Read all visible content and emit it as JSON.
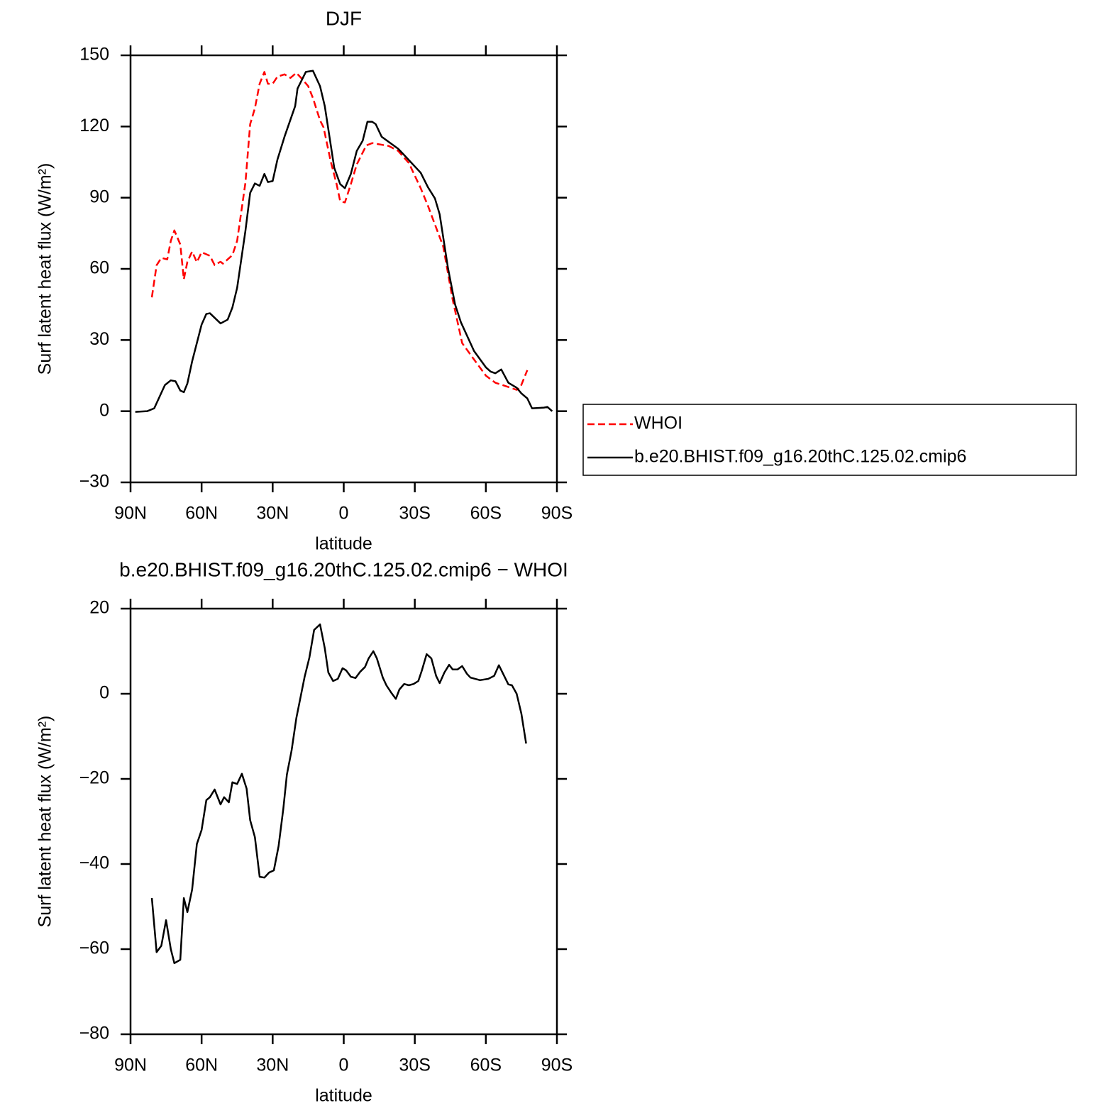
{
  "chart_data": [
    {
      "type": "line",
      "title": "DJF",
      "x_label": "latitude",
      "y_label": "Surf latent heat flux (W/m²)",
      "xlim": [
        90,
        -90
      ],
      "xticks": [
        {
          "value": 90,
          "label": "90N"
        },
        {
          "value": 60,
          "label": "60N"
        },
        {
          "value": 30,
          "label": "30N"
        },
        0,
        {
          "value": -30,
          "label": "30S"
        },
        {
          "value": -60,
          "label": "60S"
        },
        {
          "value": -90,
          "label": "90S"
        }
      ],
      "ylim": [
        -30,
        150
      ],
      "yticks": [
        {
          "value": -30,
          "label": "−30"
        },
        0,
        30,
        60,
        90,
        120,
        150
      ],
      "legend": "right",
      "series": [
        {
          "name": "WHOI",
          "color": "#ff0000",
          "dash": true,
          "x": [
            81,
            79,
            77,
            74.5,
            73,
            71.5,
            69,
            67.5,
            66,
            64,
            62,
            60,
            56.5,
            54.5,
            52,
            51,
            47,
            45,
            41.5,
            39.5,
            37.5,
            35.5,
            33.5,
            32,
            30,
            28,
            25,
            22.5,
            20,
            18,
            15,
            13,
            10,
            8.5,
            5.5,
            3,
            1.5,
            -0.5,
            -3,
            -5.5,
            -9.5,
            -12,
            -19,
            -23,
            -27.5,
            -32.5,
            -35.5,
            -42,
            -46,
            -50,
            -55,
            -60,
            -64,
            -69.5,
            -73,
            -74.5,
            -77.5
          ],
          "values": [
            48,
            61.5,
            64.6,
            64,
            71.8,
            76.2,
            70.3,
            55.6,
            63,
            67.3,
            62.8,
            67,
            65.5,
            61.6,
            63,
            62.2,
            65.8,
            71.8,
            96.3,
            121,
            127.7,
            138,
            143,
            138,
            138,
            141,
            142,
            140.5,
            142.6,
            140.5,
            137,
            132,
            122.6,
            119.6,
            105.3,
            95.7,
            88.5,
            88,
            95.7,
            104,
            112,
            113,
            111.8,
            109.7,
            104.6,
            94,
            86.7,
            69.4,
            47,
            28.7,
            21.8,
            15,
            12,
            10.2,
            9,
            9.9,
            17.3
          ]
        },
        {
          "name": "b.e20.BHIST.f09_g16.20thC.125.02.cmip6",
          "color": "#000000",
          "dash": false,
          "x": [
            88,
            83,
            80,
            75.5,
            73,
            71,
            69,
            67.5,
            66,
            64,
            60,
            58,
            56.5,
            52,
            49,
            47,
            45,
            41.5,
            39.5,
            37.5,
            35.5,
            33.5,
            32,
            30,
            28,
            25,
            20.5,
            19.5,
            16,
            13,
            10,
            8,
            4,
            1.5,
            -0.5,
            -3,
            -5.5,
            -8,
            -10,
            -12,
            -13.5,
            -16,
            -23,
            -25.5,
            -32.5,
            -35.5,
            -38.5,
            -40.5,
            -44,
            -47,
            -49.5,
            -55,
            -60,
            -62,
            -64,
            -66.5,
            -69.5,
            -73,
            -75,
            -77.5,
            -79.5,
            -84.5,
            -86,
            -88
          ],
          "values": [
            -0.3,
            0,
            1.2,
            11,
            13,
            12.6,
            8.7,
            8,
            11.7,
            21,
            36.5,
            41,
            41.3,
            37,
            38.6,
            43.7,
            52,
            76,
            92,
            96,
            95,
            100,
            96.6,
            97,
            106,
            115.7,
            128.6,
            136,
            143,
            143.5,
            137,
            128.6,
            102.6,
            95.7,
            94,
            100,
            109.7,
            114,
            122,
            122,
            121,
            115.7,
            110.6,
            108,
            100.5,
            94.5,
            89.7,
            83,
            60.4,
            45,
            37.4,
            25.4,
            18.5,
            16.7,
            16,
            17.6,
            12,
            9.9,
            7.5,
            5.4,
            1.2,
            1.5,
            1.8,
            0
          ]
        }
      ]
    },
    {
      "type": "line",
      "title": "b.e20.BHIST.f09_g16.20thC.125.02.cmip6 − WHOI",
      "x_label": "latitude",
      "y_label": "Surf latent heat flux (W/m²)",
      "xlim": [
        90,
        -90
      ],
      "xticks": [
        {
          "value": 90,
          "label": "90N"
        },
        {
          "value": 60,
          "label": "60N"
        },
        {
          "value": 30,
          "label": "30N"
        },
        0,
        {
          "value": -30,
          "label": "30S"
        },
        {
          "value": -60,
          "label": "60S"
        },
        {
          "value": -90,
          "label": "90S"
        }
      ],
      "ylim": [
        -80,
        20
      ],
      "yticks": [
        {
          "value": -80,
          "label": "−80"
        },
        {
          "value": -60,
          "label": "−60"
        },
        {
          "value": -40,
          "label": "−40"
        },
        {
          "value": -20,
          "label": "−20"
        },
        0,
        20
      ],
      "series": [
        {
          "color": "#000000",
          "dash": false,
          "x": [
            81,
            79,
            77,
            75,
            73,
            71.5,
            69,
            67.5,
            66,
            64,
            62,
            60,
            58,
            56.5,
            54.5,
            52,
            50.5,
            48.5,
            47,
            45,
            43,
            41,
            39.5,
            37.5,
            35.5,
            33.5,
            31.5,
            29.5,
            27.5,
            25.5,
            24,
            22,
            20,
            16.5,
            14.5,
            12.5,
            10,
            8,
            6.5,
            4.5,
            2.5,
            0.5,
            -1,
            -3,
            -5,
            -7,
            -9,
            -10.5,
            -12.5,
            -14,
            -16.5,
            -18,
            -20,
            -22,
            -23.5,
            -25.5,
            -27.5,
            -29.5,
            -31.5,
            -33,
            -35,
            -37,
            -39,
            -40.5,
            -42.5,
            -44.5,
            -46,
            -48,
            -50,
            -52,
            -53.5,
            -57.5,
            -61,
            -63.5,
            -65.5,
            -69.5,
            -71,
            -73,
            -75,
            -77
          ],
          "values": [
            -48,
            -60.7,
            -59.2,
            -53.2,
            -60,
            -63.3,
            -62.5,
            -48,
            -51.3,
            -46,
            -35.3,
            -32,
            -25,
            -24.3,
            -22.5,
            -26,
            -24.3,
            -25.5,
            -20.8,
            -21.2,
            -18.8,
            -22.3,
            -29.7,
            -33.7,
            -43,
            -43.2,
            -42,
            -41.5,
            -35.8,
            -27,
            -19,
            -13.3,
            -5.7,
            4,
            8.5,
            15,
            16.3,
            10.7,
            5,
            3,
            3.5,
            6,
            5.5,
            4,
            3.7,
            5.2,
            6.3,
            8.3,
            10,
            8.3,
            3.8,
            2,
            0.3,
            -1.2,
            1,
            2.3,
            2,
            2.3,
            3,
            5.5,
            9.3,
            8.3,
            4.2,
            2.5,
            5,
            6.8,
            5.7,
            5.7,
            6.5,
            4.7,
            3.8,
            3.2,
            3.5,
            4.2,
            6.7,
            2.2,
            2,
            0,
            -4.7,
            -11.7
          ]
        }
      ]
    }
  ]
}
